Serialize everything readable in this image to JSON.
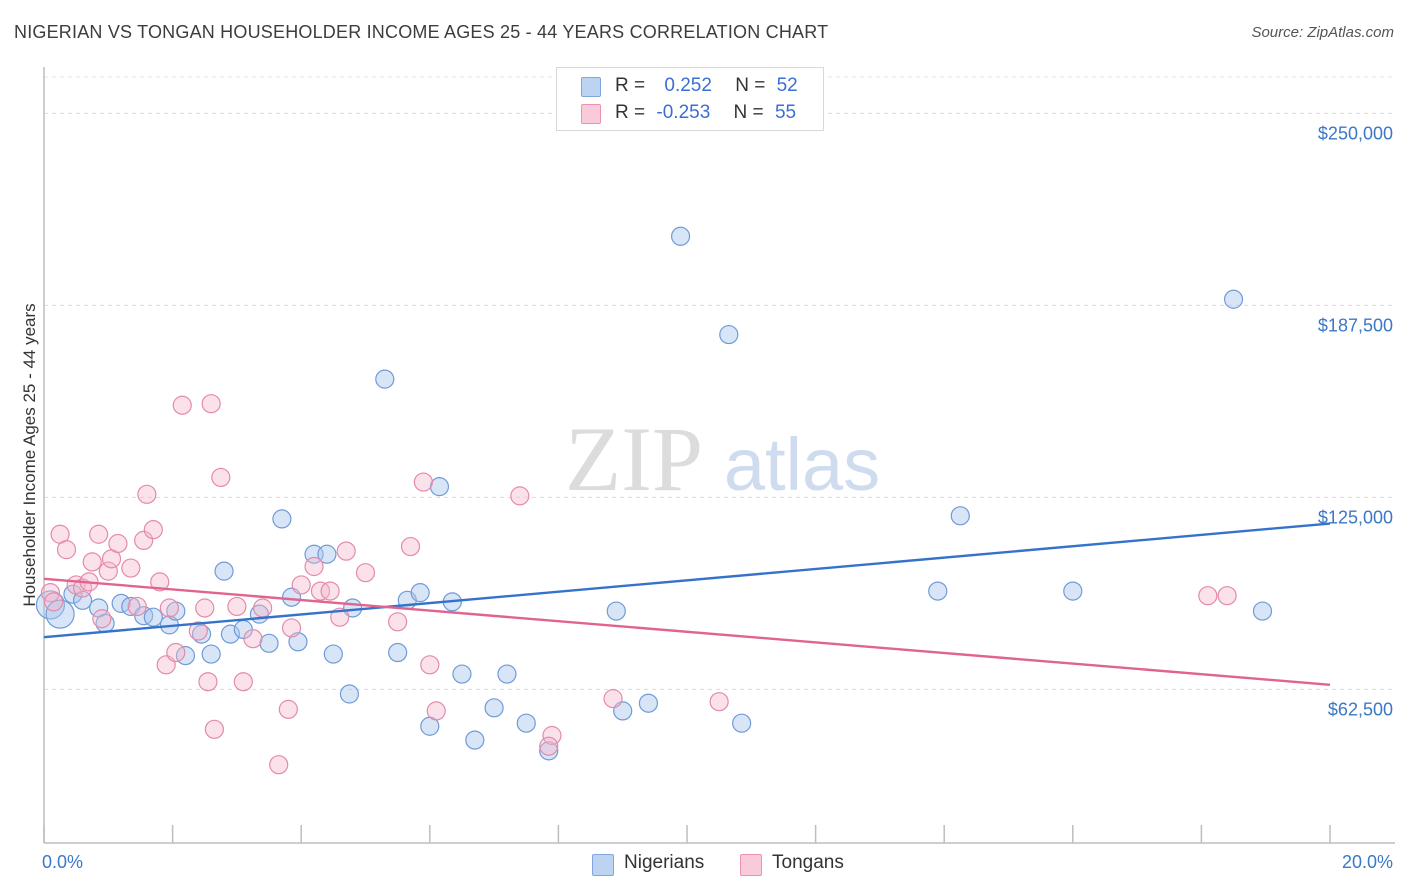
{
  "title": "NIGERIAN VS TONGAN HOUSEHOLDER INCOME AGES 25 - 44 YEARS CORRELATION CHART",
  "source": "Source: ZipAtlas.com",
  "watermark": {
    "zip": "ZIP",
    "atlas": "atlas"
  },
  "legend_top": {
    "rows": [
      {
        "r_label": "R =",
        "r_value": "0.252",
        "n_label": "N =",
        "n_value": "52",
        "color": "#a9c6ee"
      },
      {
        "r_label": "R =",
        "r_value": "-0.253",
        "n_label": "N =",
        "n_value": "55",
        "color": "#f6b6cb"
      }
    ]
  },
  "legend_bottom": {
    "items": [
      {
        "label": "Nigerians",
        "color": "#a9c6ee"
      },
      {
        "label": "Tongans",
        "color": "#f6b6cb"
      }
    ]
  },
  "chart_data": {
    "type": "scatter",
    "title": "NIGERIAN VS TONGAN HOUSEHOLDER INCOME AGES 25 - 44 YEARS CORRELATION CHART",
    "xlabel": "",
    "ylabel": "Householder Income Ages 25 - 44 years",
    "xlim": [
      0,
      20
    ],
    "ylim": [
      12500,
      262500
    ],
    "x_tick_labels": [
      "0.0%",
      "20.0%"
    ],
    "y_ticks": [
      62500,
      125000,
      187500,
      250000
    ],
    "y_tick_labels": [
      "$62,500",
      "$125,000",
      "$187,500",
      "$250,000"
    ],
    "grid": "horizontal dashed",
    "legend_placement": "top-center and bottom",
    "colors": {
      "nigerians": "#3573cb",
      "tongans": "#e0648f",
      "nig_fill": "#a9c6ee",
      "ton_fill": "#f6b6cb"
    },
    "series": [
      {
        "name": "Nigerians",
        "trend": {
          "x": [
            0,
            20
          ],
          "y": [
            79500,
            116500
          ]
        },
        "points": [
          [
            0.1,
            90000
          ],
          [
            0.25,
            87000
          ],
          [
            0.45,
            93500
          ],
          [
            0.6,
            91500
          ],
          [
            0.85,
            89000
          ],
          [
            0.95,
            84000
          ],
          [
            1.2,
            90500
          ],
          [
            1.35,
            89500
          ],
          [
            1.55,
            86500
          ],
          [
            1.7,
            86000
          ],
          [
            1.95,
            83500
          ],
          [
            2.05,
            88000
          ],
          [
            2.2,
            73500
          ],
          [
            2.45,
            80500
          ],
          [
            2.6,
            74000
          ],
          [
            2.8,
            101000
          ],
          [
            2.9,
            80500
          ],
          [
            3.1,
            82000
          ],
          [
            3.35,
            87000
          ],
          [
            3.5,
            77500
          ],
          [
            3.7,
            118000
          ],
          [
            3.85,
            92500
          ],
          [
            3.95,
            78000
          ],
          [
            4.2,
            106500
          ],
          [
            4.4,
            106500
          ],
          [
            4.5,
            74000
          ],
          [
            4.75,
            61000
          ],
          [
            4.8,
            89000
          ],
          [
            5.3,
            163500
          ],
          [
            5.5,
            74500
          ],
          [
            5.65,
            91500
          ],
          [
            5.85,
            94000
          ],
          [
            6.0,
            50500
          ],
          [
            6.15,
            128500
          ],
          [
            6.35,
            91000
          ],
          [
            6.5,
            67500
          ],
          [
            6.7,
            46000
          ],
          [
            7.0,
            56500
          ],
          [
            7.2,
            67500
          ],
          [
            7.5,
            51500
          ],
          [
            7.85,
            42500
          ],
          [
            8.9,
            88000
          ],
          [
            9.0,
            55500
          ],
          [
            9.4,
            58000
          ],
          [
            9.9,
            210000
          ],
          [
            10.65,
            178000
          ],
          [
            10.85,
            51500
          ],
          [
            13.9,
            94500
          ],
          [
            14.25,
            119000
          ],
          [
            16.0,
            94500
          ],
          [
            18.5,
            189500
          ],
          [
            18.95,
            88000
          ]
        ]
      },
      {
        "name": "Tongans",
        "trend": {
          "x": [
            0,
            20
          ],
          "y": [
            98500,
            64000
          ]
        },
        "points": [
          [
            0.1,
            94000
          ],
          [
            0.15,
            91000
          ],
          [
            0.25,
            113000
          ],
          [
            0.35,
            108000
          ],
          [
            0.5,
            96500
          ],
          [
            0.6,
            95500
          ],
          [
            0.7,
            97500
          ],
          [
            0.75,
            104000
          ],
          [
            0.85,
            113000
          ],
          [
            0.9,
            85500
          ],
          [
            1.0,
            101000
          ],
          [
            1.05,
            105000
          ],
          [
            1.15,
            110000
          ],
          [
            1.35,
            102000
          ],
          [
            1.45,
            89500
          ],
          [
            1.55,
            111000
          ],
          [
            1.6,
            126000
          ],
          [
            1.7,
            114500
          ],
          [
            1.8,
            97500
          ],
          [
            1.9,
            70500
          ],
          [
            1.95,
            89000
          ],
          [
            2.05,
            74500
          ],
          [
            2.15,
            155000
          ],
          [
            2.4,
            81500
          ],
          [
            2.5,
            89000
          ],
          [
            2.55,
            65000
          ],
          [
            2.6,
            155500
          ],
          [
            2.65,
            49500
          ],
          [
            2.75,
            131500
          ],
          [
            3.0,
            89500
          ],
          [
            3.1,
            65000
          ],
          [
            3.25,
            79000
          ],
          [
            3.4,
            89000
          ],
          [
            3.65,
            38000
          ],
          [
            3.8,
            56000
          ],
          [
            3.85,
            82500
          ],
          [
            4.0,
            96500
          ],
          [
            4.2,
            102500
          ],
          [
            4.3,
            94500
          ],
          [
            4.6,
            86000
          ],
          [
            4.7,
            107500
          ],
          [
            5.0,
            100500
          ],
          [
            5.5,
            84500
          ],
          [
            5.7,
            109000
          ],
          [
            5.9,
            130000
          ],
          [
            6.0,
            70500
          ],
          [
            6.1,
            55500
          ],
          [
            7.4,
            125500
          ],
          [
            7.9,
            47500
          ],
          [
            7.85,
            44000
          ],
          [
            8.85,
            59500
          ],
          [
            10.5,
            58500
          ],
          [
            18.1,
            93000
          ],
          [
            18.4,
            93000
          ],
          [
            4.45,
            94500
          ]
        ]
      }
    ]
  }
}
